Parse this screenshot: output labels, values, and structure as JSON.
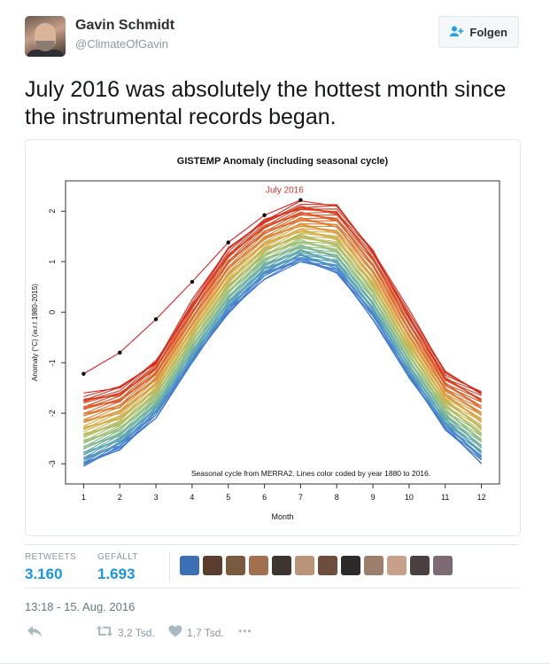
{
  "author": {
    "name": "Gavin Schmidt",
    "handle": "@ClimateOfGavin"
  },
  "follow_button": {
    "label": "Folgen",
    "icon": "add-user-icon"
  },
  "tweet": {
    "text": "July 2016 was absolutely the hottest month since the instrumental records began."
  },
  "stats": {
    "retweets_label": "RETWEETS",
    "retweets_value": "3.160",
    "likes_label": "GEFÄLLT",
    "likes_value": "1.693"
  },
  "timestamp": "13:18 - 15. Aug. 2016",
  "actions": {
    "reply_icon": "reply-icon",
    "retweet_icon": "retweet-icon",
    "retweet_count": "3,2 Tsd.",
    "like_icon": "heart-icon",
    "like_count": "1,7 Tsd.",
    "more_icon": "more-icon",
    "more_label": "•••"
  },
  "likers": [
    "#3b6fb6",
    "#5b3d2e",
    "#7a5a3f",
    "#a0704f",
    "#3e3430",
    "#b99478",
    "#6d4d3b",
    "#2d2a2a",
    "#9c7f6a",
    "#c79f8b",
    "#4a4040",
    "#7c6a75"
  ],
  "colors": {
    "accent": "#1b95e0",
    "july_2016": "#e03030"
  },
  "chart_data": {
    "type": "line",
    "title": "GISTEMP Anomaly (including seasonal cycle)",
    "xlabel": "Month",
    "ylabel": "Anomaly (°C) (w.r.t 1980-2015)",
    "annotation": "Seasonal cycle from MERRA2. Lines color coded by year 1880 to 2016.",
    "highlight_label": "July 2016",
    "x": [
      1,
      2,
      3,
      4,
      5,
      6,
      7,
      8,
      9,
      10,
      11,
      12
    ],
    "xlim": [
      0.5,
      12.5
    ],
    "ylim": [
      -3.4,
      2.6
    ],
    "x_ticks": [
      "1",
      "2",
      "3",
      "4",
      "5",
      "6",
      "7",
      "8",
      "9",
      "10",
      "11",
      "12"
    ],
    "y_ticks": [
      "-3",
      "-2",
      "-1",
      "0",
      "1",
      "2"
    ],
    "grid": false,
    "year_range": [
      1880,
      2016
    ],
    "color_scale": [
      "#3a6fd8",
      "#5aa6b8",
      "#9cc47a",
      "#d9b24a",
      "#e06a2e",
      "#d42a1e"
    ],
    "cool_envelope": [
      -3.05,
      -2.7,
      -2.05,
      -1.0,
      0.0,
      0.7,
      1.0,
      0.8,
      -0.1,
      -1.3,
      -2.3,
      -2.95
    ],
    "warm_envelope": [
      -1.65,
      -1.5,
      -0.95,
      0.2,
      1.25,
      1.85,
      2.15,
      2.1,
      1.25,
      0.0,
      -1.2,
      -1.55
    ],
    "series_2016": {
      "x": [
        1,
        2,
        3,
        4,
        5,
        6,
        7
      ],
      "values": [
        -1.22,
        -0.8,
        -0.14,
        0.6,
        1.38,
        1.92,
        2.22
      ]
    }
  }
}
